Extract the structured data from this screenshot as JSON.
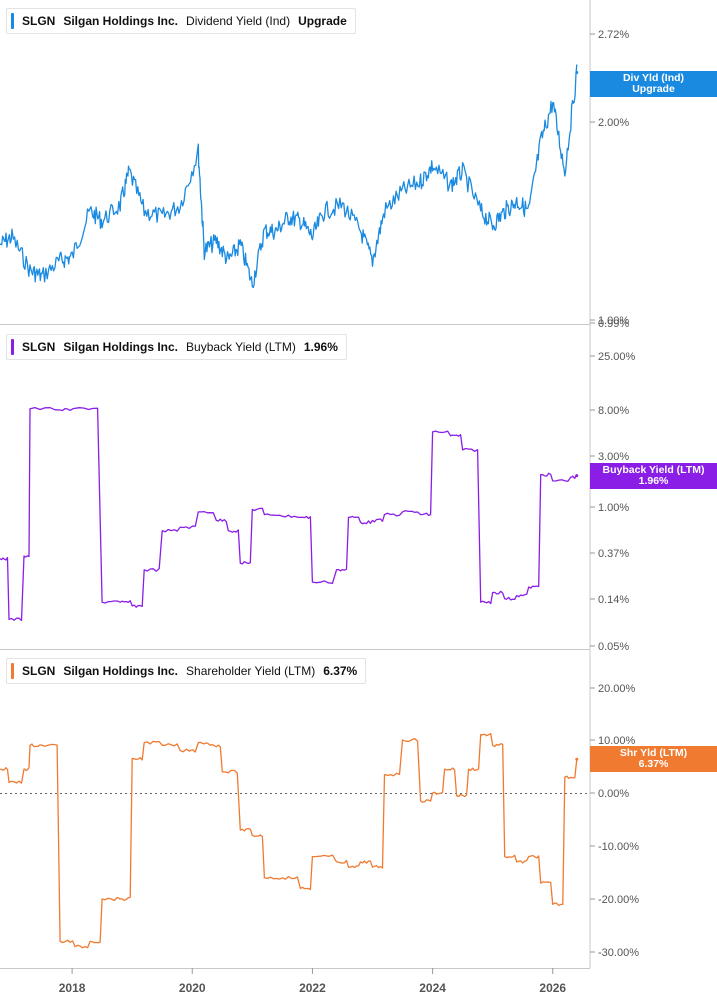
{
  "panels": [
    {
      "ticker": "SLGN",
      "company": "Silgan Holdings Inc.",
      "metric": "Dividend Yield (Ind)",
      "value": "Upgrade",
      "color": "#1a8ae0"
    },
    {
      "ticker": "SLGN",
      "company": "Silgan Holdings Inc.",
      "metric": "Buyback Yield (LTM)",
      "value": "1.96%",
      "color": "#8a1ee6"
    },
    {
      "ticker": "SLGN",
      "company": "Silgan Holdings Inc.",
      "metric": "Shareholder Yield (LTM)",
      "value": "6.37%",
      "color": "#f07a30"
    }
  ],
  "tags": [
    {
      "line1": "Div Yld (Ind)",
      "line2": "Upgrade",
      "color": "#1a8ae0"
    },
    {
      "line1": "Buyback Yield (LTM)",
      "line2": "1.96%",
      "color": "#8a1ee6"
    },
    {
      "line1": "Shr Yld (LTM)",
      "line2": "6.37%",
      "color": "#f07a30"
    }
  ],
  "chart_data": [
    {
      "type": "line",
      "series": [
        {
          "name": "Dividend Yield (Ind)",
          "color": "#1a8ae0"
        }
      ],
      "x": [
        2016.8,
        2017.0,
        2017.3,
        2017.5,
        2017.8,
        2018.0,
        2018.3,
        2018.5,
        2018.8,
        2018.95,
        2019.2,
        2019.5,
        2019.8,
        2020.1,
        2020.2,
        2020.4,
        2020.6,
        2020.8,
        2021.0,
        2021.2,
        2021.4,
        2021.6,
        2021.8,
        2022.0,
        2022.2,
        2022.5,
        2022.8,
        2023.0,
        2023.2,
        2023.5,
        2023.8,
        2024.0,
        2024.3,
        2024.5,
        2024.8,
        2025.0,
        2025.2,
        2025.4,
        2025.6,
        2025.8,
        2026.0,
        2026.2,
        2026.4
      ],
      "values": [
        1.38,
        1.42,
        1.25,
        1.22,
        1.3,
        1.32,
        1.55,
        1.5,
        1.58,
        1.75,
        1.55,
        1.52,
        1.58,
        1.85,
        1.35,
        1.4,
        1.3,
        1.38,
        1.18,
        1.45,
        1.45,
        1.52,
        1.5,
        1.42,
        1.55,
        1.58,
        1.45,
        1.3,
        1.55,
        1.65,
        1.7,
        1.78,
        1.68,
        1.75,
        1.55,
        1.48,
        1.55,
        1.6,
        1.55,
        1.9,
        2.1,
        1.75,
        2.25
      ],
      "yticks": [
        "2.72%",
        "2.00%",
        "1.00%",
        "0.99%"
      ],
      "ylim": [
        0.99,
        3.2
      ]
    },
    {
      "type": "line",
      "series": [
        {
          "name": "Buyback Yield (LTM)",
          "color": "#8a1ee6"
        }
      ],
      "x": [
        2016.8,
        2016.95,
        2017.2,
        2017.3,
        2017.8,
        2018.05,
        2018.5,
        2018.8,
        2019.0,
        2019.2,
        2019.5,
        2019.8,
        2020.1,
        2020.4,
        2020.6,
        2020.8,
        2021.0,
        2021.2,
        2021.5,
        2021.8,
        2022.0,
        2022.4,
        2022.6,
        2022.8,
        2023.0,
        2023.2,
        2023.5,
        2023.8,
        2024.0,
        2024.3,
        2024.5,
        2024.8,
        2025.0,
        2025.2,
        2025.4,
        2025.6,
        2025.8,
        2026.0,
        2026.3,
        2026.4
      ],
      "values": [
        0.33,
        0.09,
        0.35,
        8.2,
        8.0,
        8.3,
        0.13,
        0.13,
        0.12,
        0.26,
        0.6,
        0.65,
        0.9,
        0.75,
        0.6,
        0.3,
        0.95,
        0.85,
        0.82,
        0.8,
        0.2,
        0.26,
        0.8,
        0.72,
        0.75,
        0.85,
        0.9,
        0.85,
        5.0,
        4.6,
        3.4,
        0.13,
        0.16,
        0.14,
        0.15,
        0.18,
        2.0,
        1.75,
        1.9,
        1.96
      ],
      "yticks": [
        "25.00%",
        "8.00%",
        "3.00%",
        "1.00%",
        "0.37%",
        "0.14%",
        "0.05%"
      ],
      "scale": "log",
      "ylim": [
        0.05,
        40
      ]
    },
    {
      "type": "line",
      "series": [
        {
          "name": "Shareholder Yield (LTM)",
          "color": "#f07a30"
        }
      ],
      "x": [
        2016.8,
        2016.95,
        2017.2,
        2017.3,
        2017.5,
        2017.8,
        2018.05,
        2018.3,
        2018.5,
        2018.8,
        2019.0,
        2019.2,
        2019.5,
        2019.8,
        2020.1,
        2020.3,
        2020.5,
        2020.8,
        2021.0,
        2021.2,
        2021.5,
        2021.8,
        2022.0,
        2022.4,
        2022.6,
        2022.8,
        2023.0,
        2023.2,
        2023.5,
        2023.8,
        2024.0,
        2024.2,
        2024.4,
        2024.6,
        2024.8,
        2025.0,
        2025.2,
        2025.4,
        2025.6,
        2025.8,
        2026.0,
        2026.2,
        2026.4
      ],
      "values": [
        4.5,
        2.0,
        4.5,
        9.0,
        9.0,
        -28,
        -29,
        -28,
        -20,
        -20,
        6.5,
        9.5,
        9.0,
        8.0,
        9.5,
        9.0,
        4.0,
        -7.0,
        -8.0,
        -16,
        -16,
        -18,
        -12,
        -13,
        -14,
        -13,
        -14,
        3.5,
        10.0,
        -1.5,
        0.0,
        4.5,
        -0.5,
        4.5,
        11.0,
        9.0,
        -12,
        -13,
        -12,
        -17,
        -21,
        3.0,
        6.37
      ],
      "yticks": [
        "20.00%",
        "10.00%",
        "0.00%",
        "-10.00%",
        "-20.00%",
        "-30.00%"
      ],
      "ylim": [
        -32,
        24
      ]
    }
  ],
  "xaxis": {
    "ticks": [
      "2018",
      "2020",
      "2022",
      "2024",
      "2026"
    ]
  }
}
